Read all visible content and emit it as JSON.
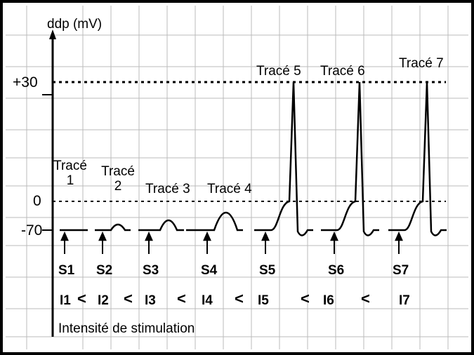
{
  "axis_label": "ddp (mV)",
  "y_labels": [
    "+30",
    "0",
    "-70"
  ],
  "traces": [
    "Tracé 1",
    "Tracé 2",
    "Tracé 3",
    "Tracé 4",
    "Tracé 5",
    "Tracé 6",
    "Tracé 7"
  ],
  "stimuli": [
    "S1",
    "S2",
    "S3",
    "S4",
    "S5",
    "S6",
    "S7"
  ],
  "intensities": [
    "I1",
    "I2",
    "I3",
    "I4",
    "I5",
    "I6",
    "I7"
  ],
  "comparators": [
    "<",
    "<",
    "<",
    "<",
    "<",
    "<"
  ],
  "x_label": "Intensité de stimulation"
}
